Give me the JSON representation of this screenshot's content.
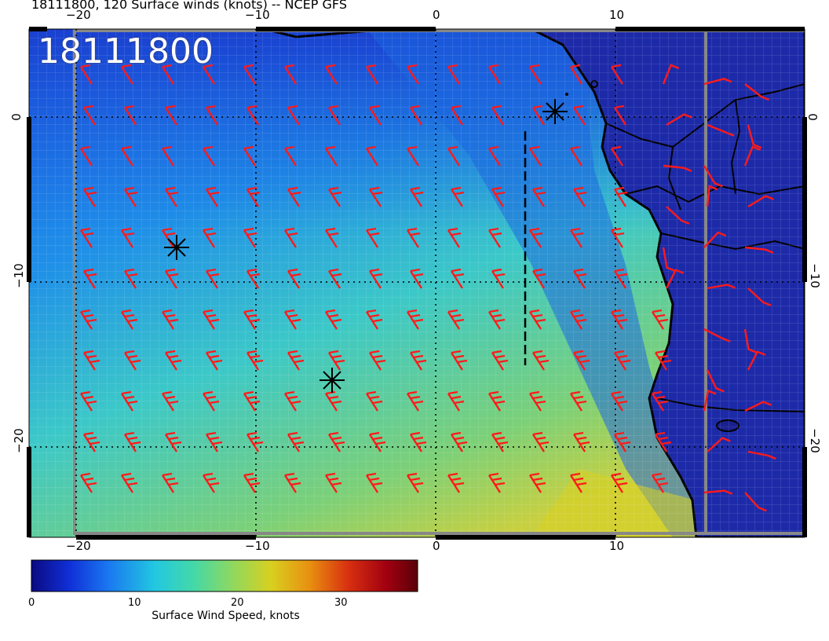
{
  "title": "18111800, 120 Surface winds (knots) -- NCEP GFS",
  "timestamp_label": "18111800",
  "map": {
    "top_lon_ticks": [
      "−20",
      "−10",
      "0",
      "10"
    ],
    "bottom_lon_ticks": [
      "−20",
      "−10",
      "0",
      "10"
    ],
    "left_lat_ticks": [
      "0",
      "−10",
      "−20"
    ],
    "right_lat_ticks": [
      "0",
      "−10",
      "−20"
    ],
    "colors": {
      "land": "#1d2aa8",
      "coast": "#000000",
      "barb": "#ff1a1a",
      "grid": "#ffffff"
    }
  },
  "colorbar": {
    "title": "Surface Wind Speed, knots",
    "ticks": [
      "0",
      "10",
      "20",
      "30"
    ],
    "colors": [
      "#0a0a80",
      "#1030d8",
      "#1a78f0",
      "#22c8e0",
      "#44d8a8",
      "#8ed860",
      "#d8d020",
      "#e89010",
      "#d83010",
      "#a00010",
      "#5a0008"
    ]
  },
  "markers": [
    "star",
    "star",
    "star"
  ]
}
